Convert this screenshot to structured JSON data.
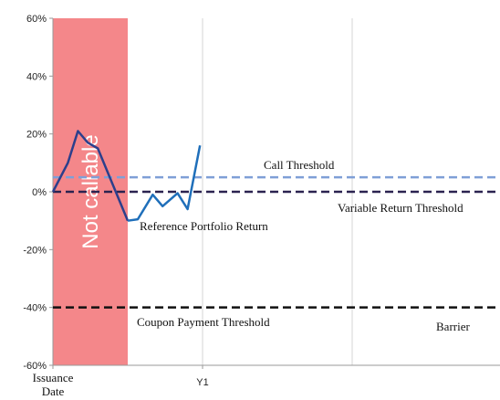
{
  "chart_data": {
    "type": "line",
    "title": "",
    "xlabel": "",
    "ylabel": "",
    "ylim": [
      -60,
      60
    ],
    "y_ticks": [
      {
        "value": 60,
        "label": "60%"
      },
      {
        "value": 40,
        "label": "40%"
      },
      {
        "value": 20,
        "label": "20%"
      },
      {
        "value": 0,
        "label": "0%"
      },
      {
        "value": -20,
        "label": "-20%"
      },
      {
        "value": -40,
        "label": "-40%"
      },
      {
        "value": -60,
        "label": "-60%"
      }
    ],
    "x_ticks": [
      {
        "value": 0,
        "label": "Issuance Date",
        "label_lines": [
          "Issuance",
          "Date"
        ]
      },
      {
        "value": 1,
        "label": "Y1",
        "label_lines": [
          "Y1"
        ]
      }
    ],
    "xlim": [
      0,
      3
    ],
    "x_gridlines": [
      1,
      2,
      3
    ],
    "series": [
      {
        "name": "Reference Portfolio Return",
        "color": "#1f6fba",
        "points": [
          [
            0.0,
            0
          ],
          [
            0.1,
            10
          ],
          [
            0.167,
            21
          ],
          [
            0.233,
            17
          ],
          [
            0.3,
            15
          ],
          [
            0.5,
            -10
          ],
          [
            0.567,
            -9.5
          ],
          [
            0.667,
            -1
          ],
          [
            0.733,
            -5
          ],
          [
            0.833,
            -0.5
          ],
          [
            0.9,
            -6
          ],
          [
            0.983,
            16
          ]
        ]
      }
    ],
    "segment_colors": {
      "within_not_callable": "#2c3f8c"
    },
    "thresholds": [
      {
        "name": "Call Threshold",
        "value": 5,
        "color": "#7f9fd6",
        "style": "dashed"
      },
      {
        "name": "Variable Return Threshold",
        "value": 0,
        "color": "#2b2350",
        "style": "dashed"
      },
      {
        "name": "Coupon Payment Threshold",
        "value": -40,
        "color": "#111111",
        "style": "dashed"
      }
    ],
    "shaded_region": {
      "label": "Not callable",
      "x_start": 0,
      "x_end": 0.5,
      "color": "#f4878a"
    },
    "annotations": {
      "call_threshold": "Call Threshold",
      "variable_return_threshold": "Variable Return Threshold",
      "reference_portfolio_return": "Reference Portfolio Return",
      "coupon_payment_threshold": "Coupon Payment Threshold",
      "barrier": "Barrier"
    }
  }
}
